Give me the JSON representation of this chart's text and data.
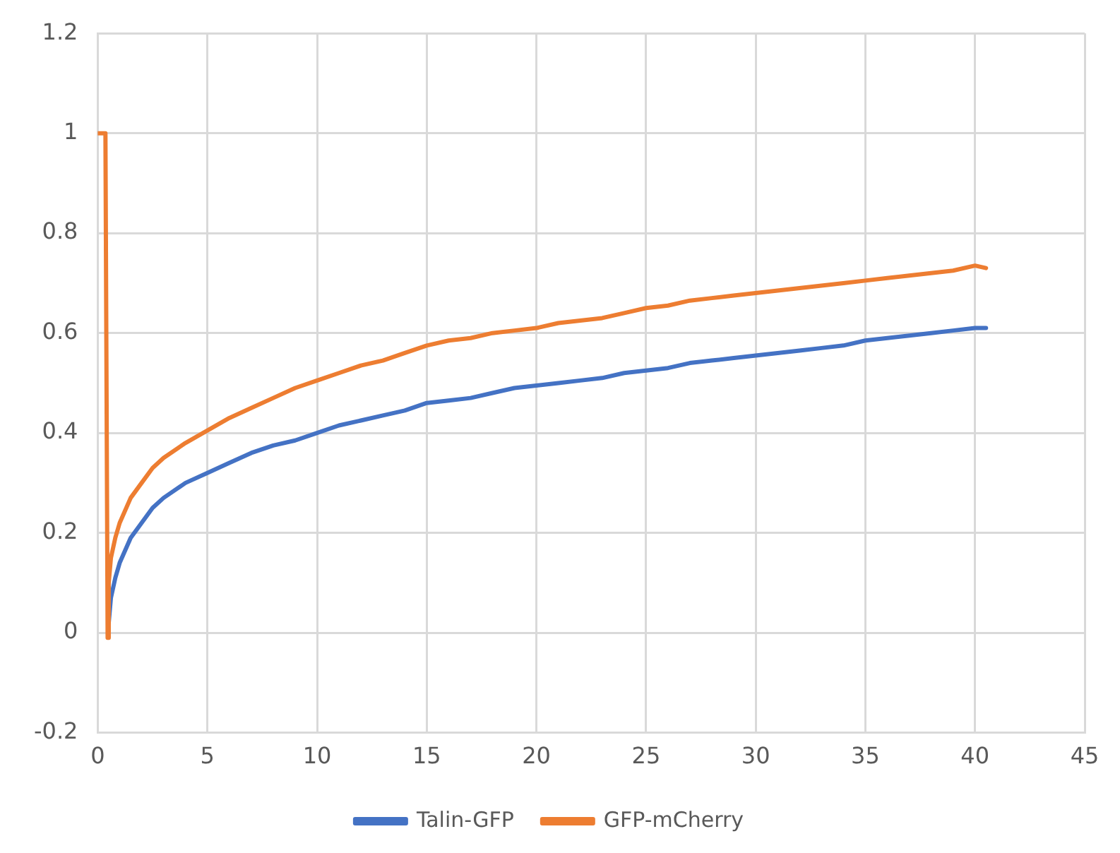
{
  "chart_data": {
    "type": "line",
    "xlim": [
      0,
      45
    ],
    "xticks": [
      0,
      5,
      10,
      15,
      20,
      25,
      30,
      35,
      40,
      45
    ],
    "ylim": [
      -0.2,
      1.2
    ],
    "yticks": [
      -0.2,
      0,
      0.2,
      0.4,
      0.6,
      0.8,
      1,
      1.2
    ],
    "grid": true,
    "legend": "bottom",
    "marker": "none",
    "line_style": "solid",
    "series": [
      {
        "name": "Talin-GFP",
        "color": "#4472c4",
        "x": [
          0.5,
          0.6,
          0.8,
          1,
          1.5,
          2,
          2.5,
          3,
          4,
          5,
          6,
          7,
          8,
          9,
          10,
          11,
          12,
          13,
          14,
          15,
          16,
          17,
          18,
          19,
          20,
          21,
          22,
          23,
          24,
          25,
          26,
          27,
          28,
          29,
          30,
          31,
          32,
          33,
          34,
          35,
          36,
          37,
          38,
          39,
          40,
          40.5
        ],
        "values": [
          0.02,
          0.07,
          0.11,
          0.14,
          0.19,
          0.22,
          0.25,
          0.27,
          0.3,
          0.32,
          0.34,
          0.36,
          0.375,
          0.385,
          0.4,
          0.415,
          0.425,
          0.435,
          0.445,
          0.46,
          0.465,
          0.47,
          0.48,
          0.49,
          0.495,
          0.5,
          0.505,
          0.51,
          0.52,
          0.525,
          0.53,
          0.54,
          0.545,
          0.55,
          0.555,
          0.56,
          0.565,
          0.57,
          0.575,
          0.585,
          0.59,
          0.595,
          0.6,
          0.605,
          0.61,
          0.61
        ]
      },
      {
        "name": "GFP-mCherry",
        "color": "#ed7d31",
        "x": [
          0,
          0.3,
          0.35,
          0.45,
          0.5,
          0.6,
          0.8,
          1,
          1.5,
          2,
          2.5,
          3,
          4,
          5,
          6,
          7,
          8,
          9,
          10,
          11,
          12,
          13,
          14,
          15,
          16,
          17,
          18,
          19,
          20,
          21,
          22,
          23,
          24,
          25,
          26,
          27,
          28,
          29,
          30,
          31,
          32,
          33,
          34,
          35,
          36,
          37,
          38,
          39,
          40,
          40.5
        ],
        "values": [
          1,
          1,
          1,
          -0.01,
          0.1,
          0.15,
          0.19,
          0.22,
          0.27,
          0.3,
          0.33,
          0.35,
          0.38,
          0.405,
          0.43,
          0.45,
          0.47,
          0.49,
          0.505,
          0.52,
          0.535,
          0.545,
          0.56,
          0.575,
          0.585,
          0.59,
          0.6,
          0.605,
          0.61,
          0.62,
          0.625,
          0.63,
          0.64,
          0.65,
          0.655,
          0.665,
          0.67,
          0.675,
          0.68,
          0.685,
          0.69,
          0.695,
          0.7,
          0.705,
          0.71,
          0.715,
          0.72,
          0.725,
          0.735,
          0.73
        ]
      }
    ]
  }
}
